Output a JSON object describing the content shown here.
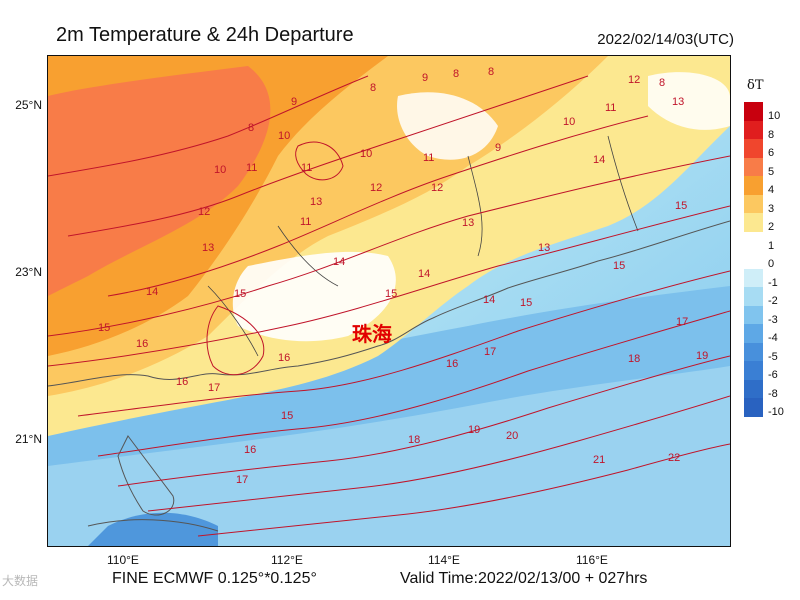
{
  "header": {
    "title": "2m Temperature & 24h Departure",
    "timestamp": "2022/02/14/03(UTC)"
  },
  "footer": {
    "model": "FINE ECMWF 0.125°*0.125°",
    "valid_time": "Valid Time:2022/02/13/00 + 027hrs",
    "watermark": "大数据"
  },
  "map": {
    "lat_labels": [
      "25°N",
      "23°N",
      "21°N"
    ],
    "lon_labels": [
      "110°E",
      "112°E",
      "114°E",
      "116°E"
    ],
    "city_label": "珠海",
    "contour_labels": [
      "8",
      "8",
      "9",
      "8",
      "8",
      "9",
      "10",
      "12",
      "11",
      "12",
      "13",
      "11",
      "10",
      "11",
      "10",
      "9",
      "10",
      "11",
      "12",
      "11",
      "14",
      "12",
      "13",
      "13",
      "13",
      "15",
      "14",
      "15",
      "14",
      "14",
      "15",
      "16",
      "15",
      "13",
      "14",
      "15",
      "16",
      "15",
      "17",
      "17",
      "16",
      "16",
      "17",
      "18",
      "19",
      "15",
      "16",
      "18",
      "19",
      "20",
      "17",
      "21",
      "22"
    ]
  },
  "legend": {
    "title": "δT",
    "labels": [
      "10",
      "8",
      "6",
      "5",
      "4",
      "3",
      "2",
      "1",
      "0",
      "-1",
      "-2",
      "-3",
      "-4",
      "-5",
      "-6",
      "-8",
      "-10"
    ],
    "colors": [
      "#c8000e",
      "#e01e1e",
      "#f0462d",
      "#f87c48",
      "#f8a030",
      "#fcc860",
      "#fce890",
      "#ffffff",
      "#ffffff",
      "#cfeef8",
      "#a7dcf3",
      "#80c4ee",
      "#5ea8e6",
      "#4890dc",
      "#3a7fd4",
      "#2f6ec8",
      "#2962c0"
    ]
  }
}
